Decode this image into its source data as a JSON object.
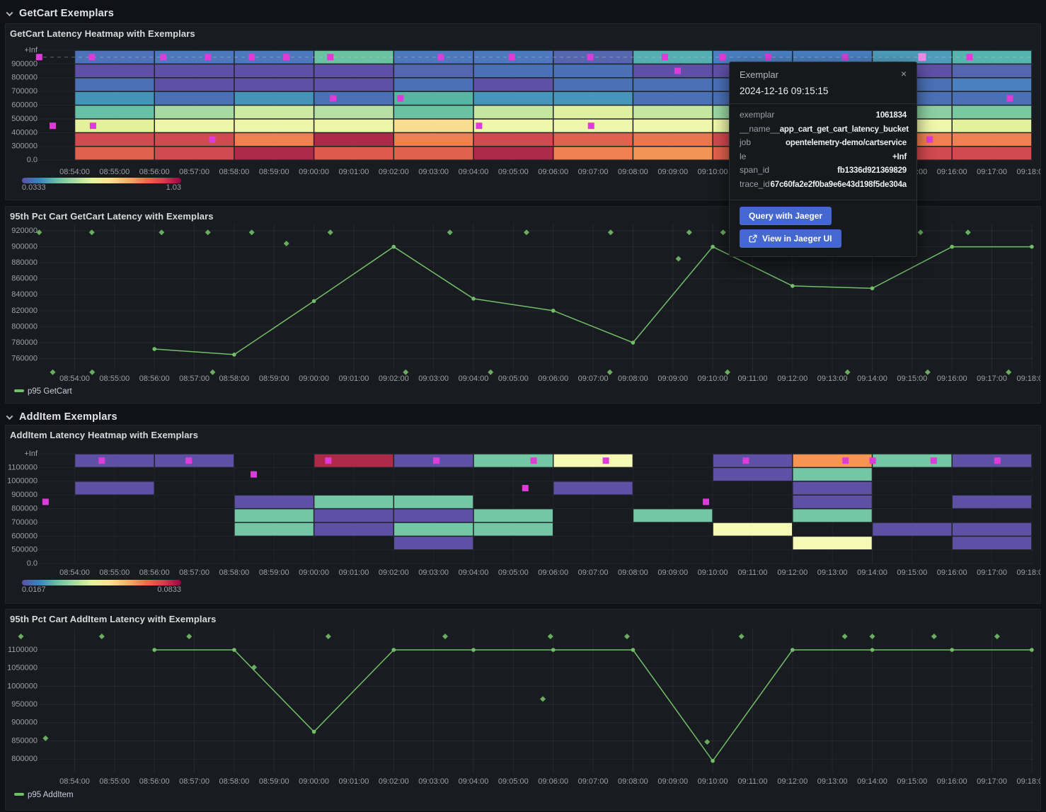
{
  "sections": [
    {
      "title": "GetCart Exemplars"
    },
    {
      "title": "AddItem Exemplars"
    }
  ],
  "exemplar_color": "#dd3cd8",
  "exemplar_highlight_color": "#f58ae6",
  "accent_button_color": "#4468cf",
  "time_axis": [
    "08:54:00",
    "08:55:00",
    "08:56:00",
    "08:57:00",
    "08:58:00",
    "08:59:00",
    "09:00:00",
    "09:01:00",
    "09:02:00",
    "09:03:00",
    "09:04:00",
    "09:05:00",
    "09:06:00",
    "09:07:00",
    "09:08:00",
    "09:09:00",
    "09:10:00",
    "09:11:00",
    "09:12:00",
    "09:13:00",
    "09:14:00",
    "09:15:00",
    "09:16:00",
    "09:17:00",
    "09:18:00"
  ],
  "tooltip": {
    "title": "Exemplar",
    "close_icon": "×",
    "timestamp": "2024-12-16 09:15:15",
    "fields": [
      {
        "label": "exemplar",
        "value": "1061834"
      },
      {
        "label": "__name__",
        "value": "app_cart_get_cart_latency_bucket"
      },
      {
        "label": "job",
        "value": "opentelemetry-demo/cartservice"
      },
      {
        "label": "le",
        "value": "+Inf"
      },
      {
        "label": "span_id",
        "value": "fb1336d921369829"
      },
      {
        "label": "trace_id",
        "value": "67c60fa2e2f0ba9e6e43d198f5de304a"
      }
    ],
    "buttons": [
      {
        "label": "Query with Jaeger",
        "icon": null
      },
      {
        "label": "View in Jaeger UI",
        "icon": "external-link-icon"
      }
    ]
  },
  "chart_data": [
    {
      "type": "heatmap",
      "title": "GetCart Latency Heatmap with Exemplars",
      "y_bucket_labels": [
        "0.0",
        "300000",
        "400000",
        "500000",
        "600000",
        "700000",
        "800000",
        "900000",
        "+Inf"
      ],
      "col_start_min": 1,
      "col_width_min": 2,
      "dashed_guideline_row": 0,
      "cells": [
        [
          "#4d72b8",
          "#5e51a5",
          "#4a70b6",
          "#4494b8",
          "#68c0a4",
          "#e3f19c",
          "#d04a50",
          "#e0614d"
        ],
        [
          "#4d79bc",
          "#5e51a5",
          "#5e51a5",
          "#4a70b6",
          "#a6d9a4",
          "#ecf6a6",
          "#d04a50",
          "#d04a50"
        ],
        [
          "#4d79bc",
          "#5e51a5",
          "#5e51a5",
          "#4494b8",
          "#cdeaa2",
          "#ecf6a6",
          "#ef8150",
          "#ae2a48"
        ],
        [
          "#6ac2a2",
          "#5e51a5",
          "#5e51a5",
          "#4a70b6",
          "#b5dfa4",
          "#ecf6a6",
          "#ae2a48",
          "#dd5b4c"
        ],
        [
          "#4d79bc",
          "#5565ae",
          "#4a70b6",
          "#57b5a2",
          "#6ac2a2",
          "#f7dd8e",
          "#ef8150",
          "#e0614d"
        ],
        [
          "#4d79bc",
          "#4a70b6",
          "#5e51a5",
          "#4596ba",
          "#c4e6a0",
          "#eef7ab",
          "#d04a50",
          "#ae2a48"
        ],
        [
          "#5565ae",
          "#4a70b6",
          "#4a70b6",
          "#4596ba",
          "#dff0a0",
          "#eef7ab",
          "#e0614d",
          "#ef8150"
        ],
        [
          "#55aeb2",
          "#5e51a5",
          "#4a70b6",
          "#4a70b6",
          "#c4e6a0",
          "#eef7ab",
          "#e8764f",
          "#f29455"
        ],
        [
          "#4a7fc0",
          "#5e51a5",
          "#4a70b6",
          "#4a70b6",
          "#9cd7a4",
          "#eef7ab",
          "#d04a50",
          "#e0614d"
        ],
        [
          "#4a7fc0",
          "#5e51a5",
          "#4a70b6",
          "#4596ba",
          "#b5dfa4",
          "#eef7ab",
          "#e0614d",
          "#d04a50"
        ],
        [
          "#4e9cba",
          "#5e51a5",
          "#4a70b6",
          "#4a70b6",
          "#8ccfa2",
          "#eef7ab",
          "#ef8150",
          "#d04a50"
        ],
        [
          "#55b5ae",
          "#5565ae",
          "#4a7fc0",
          "#4a70b6",
          "#79c9a0",
          "#e3f19c",
          "#ef8150",
          "#d04a50"
        ]
      ],
      "exemplars": [
        {
          "m": 0.11,
          "row": 0
        },
        {
          "m": 1.43,
          "row": 0
        },
        {
          "m": 3.22,
          "row": 0
        },
        {
          "m": 4.34,
          "row": 0
        },
        {
          "m": 5.44,
          "row": 0
        },
        {
          "m": 6.31,
          "row": 0
        },
        {
          "m": 7.41,
          "row": 0
        },
        {
          "m": 10.18,
          "row": 0
        },
        {
          "m": 11.96,
          "row": 0
        },
        {
          "m": 13.93,
          "row": 0
        },
        {
          "m": 15.8,
          "row": 0
        },
        {
          "m": 17.25,
          "row": 0
        },
        {
          "m": 18.39,
          "row": 0
        },
        {
          "m": 20.32,
          "row": 0
        },
        {
          "m": 22.25,
          "row": 0,
          "highlight": true
        },
        {
          "m": 23.44,
          "row": 0
        },
        {
          "m": 16.12,
          "row": 1
        },
        {
          "m": 7.48,
          "row": 3
        },
        {
          "m": 9.17,
          "row": 3
        },
        {
          "m": 24.45,
          "row": 3
        },
        {
          "m": 0.45,
          "row": 5
        },
        {
          "m": 1.46,
          "row": 5
        },
        {
          "m": 11.14,
          "row": 5
        },
        {
          "m": 13.95,
          "row": 5
        },
        {
          "m": 4.45,
          "row": 6
        },
        {
          "m": 22.44,
          "row": 6
        }
      ],
      "scale": {
        "min_label": "0.0333",
        "max_label": "1.03",
        "gradient": [
          "#5e4fa2",
          "#3288bd",
          "#66c2a5",
          "#abdda4",
          "#e6f598",
          "#fee08b",
          "#fdae61",
          "#f46d43",
          "#d53e4f",
          "#9e0142"
        ]
      }
    },
    {
      "type": "line",
      "title": "95th Pct Cart GetCart Latency with Exemplars",
      "legend": "p95 GetCart",
      "y_ticks": [
        920000,
        900000,
        880000,
        860000,
        840000,
        820000,
        800000,
        780000,
        760000
      ],
      "y_max": 920000,
      "y_step": 20000,
      "series": [
        {
          "name": "p95 GetCart",
          "color": "#73bf69",
          "x_times": [
            "08:56:00",
            "08:58:00",
            "09:00:00",
            "09:02:00",
            "09:04:00",
            "09:06:00",
            "09:08:00",
            "09:10:00",
            "09:12:00",
            "09:14:00",
            "09:16:00",
            "09:18:00"
          ],
          "x_min": [
            3,
            5,
            7,
            9,
            11,
            13,
            15,
            17,
            19,
            21,
            23,
            25
          ],
          "values": [
            772000,
            765000,
            832000,
            900000,
            835000,
            820000,
            780000,
            900000,
            851000,
            848000,
            900000,
            900000
          ]
        }
      ],
      "exemplars": [
        {
          "m": 0.11,
          "v": 918000
        },
        {
          "m": 1.43,
          "v": 918000
        },
        {
          "m": 3.18,
          "v": 918000
        },
        {
          "m": 4.34,
          "v": 918000
        },
        {
          "m": 5.44,
          "v": 918000
        },
        {
          "m": 7.41,
          "v": 918000
        },
        {
          "m": 10.41,
          "v": 918000
        },
        {
          "m": 12.33,
          "v": 918000
        },
        {
          "m": 14.44,
          "v": 918000
        },
        {
          "m": 16.41,
          "v": 918000
        },
        {
          "m": 17.26,
          "v": 918000
        },
        {
          "m": 22.21,
          "v": 918000
        },
        {
          "m": 23.4,
          "v": 918000
        },
        {
          "m": 6.31,
          "v": 904000
        },
        {
          "m": 16.14,
          "v": 885000
        },
        {
          "m": 0.45,
          "v": 743000
        },
        {
          "m": 1.44,
          "v": 743000
        },
        {
          "m": 4.46,
          "v": 743000
        },
        {
          "m": 9.3,
          "v": 743000
        },
        {
          "m": 11.43,
          "v": 743000
        },
        {
          "m": 14.42,
          "v": 743000
        },
        {
          "m": 17.37,
          "v": 743000
        },
        {
          "m": 20.38,
          "v": 743000
        },
        {
          "m": 22.39,
          "v": 743000
        },
        {
          "m": 24.42,
          "v": 743000
        }
      ]
    },
    {
      "type": "heatmap",
      "title": "AddItem Latency Heatmap with Exemplars",
      "y_bucket_labels": [
        "0.0",
        "500000",
        "600000",
        "700000",
        "800000",
        "900000",
        "1000000",
        "1100000",
        "+Inf"
      ],
      "col_start_min": 1,
      "col_width_min": 2,
      "dashed_guideline_row": null,
      "cells": [
        [
          "#5e51a5",
          null,
          "#5e51a5",
          null,
          null,
          null,
          null,
          null
        ],
        [
          "#5e51a5",
          null,
          null,
          null,
          null,
          null,
          null,
          null
        ],
        [
          null,
          null,
          null,
          "#5e51a5",
          "#74c7a4",
          "#74c7a4",
          null,
          null
        ],
        [
          "#ae2a48",
          null,
          null,
          "#74c7a4",
          "#5e51a5",
          "#5e51a5",
          null,
          null
        ],
        [
          "#5e51a5",
          null,
          null,
          "#74c7a4",
          "#5e51a5",
          "#74c7a4",
          "#5e51a5",
          null
        ],
        [
          "#74c7a4",
          null,
          null,
          null,
          "#74c7a4",
          "#74c7a4",
          null,
          null
        ],
        [
          "#f5f9b4",
          null,
          "#5e51a5",
          null,
          null,
          null,
          null,
          null
        ],
        [
          null,
          null,
          null,
          null,
          "#74c7a4",
          null,
          null,
          null
        ],
        [
          "#5e51a5",
          "#5e51a5",
          null,
          null,
          null,
          "#f5f9b4",
          null,
          null
        ],
        [
          "#f79454",
          "#74c7a4",
          "#5e51a5",
          "#5e51a5",
          "#74c7a4",
          null,
          "#f5f9b4",
          null
        ],
        [
          "#74c7a4",
          null,
          null,
          null,
          null,
          "#5e51a5",
          null,
          null
        ],
        [
          "#5e51a5",
          null,
          null,
          "#5e51a5",
          null,
          "#5e51a5",
          "#5e51a5",
          null
        ]
      ],
      "exemplars": [
        {
          "m": 1.68,
          "row": 0
        },
        {
          "m": 3.86,
          "row": 0
        },
        {
          "m": 7.36,
          "row": 0
        },
        {
          "m": 10.07,
          "row": 0
        },
        {
          "m": 12.51,
          "row": 0
        },
        {
          "m": 14.32,
          "row": 0
        },
        {
          "m": 17.83,
          "row": 0
        },
        {
          "m": 20.33,
          "row": 0
        },
        {
          "m": 21.01,
          "row": 0
        },
        {
          "m": 22.54,
          "row": 0
        },
        {
          "m": 24.14,
          "row": 0
        },
        {
          "m": 5.49,
          "row": 1
        },
        {
          "m": 12.3,
          "row": 2
        },
        {
          "m": 0.27,
          "row": 3
        },
        {
          "m": 16.83,
          "row": 3
        }
      ],
      "scale": {
        "min_label": "0.0167",
        "max_label": "0.0833",
        "gradient": [
          "#5e4fa2",
          "#3288bd",
          "#66c2a5",
          "#abdda4",
          "#e6f598",
          "#fee08b",
          "#fdae61",
          "#f46d43",
          "#d53e4f",
          "#9e0142"
        ]
      }
    },
    {
      "type": "line",
      "title": "95th Pct Cart AddItem Latency with Exemplars",
      "legend": "p95 AddItem",
      "y_ticks": [
        1100000,
        1050000,
        1000000,
        950000,
        900000,
        850000,
        800000
      ],
      "y_max": 1100000,
      "y_step": 50000,
      "series": [
        {
          "name": "p95 AddItem",
          "color": "#73bf69",
          "x_times": [
            "08:56:00",
            "08:58:00",
            "09:00:00",
            "09:02:00",
            "09:04:00",
            "09:06:00",
            "09:08:00",
            "09:10:00",
            "09:12:00",
            "09:14:00",
            "09:16:00",
            "09:18:00"
          ],
          "x_min": [
            3,
            5,
            7,
            9,
            11,
            13,
            15,
            17,
            19,
            21,
            23,
            25
          ],
          "values": [
            1100000,
            1100000,
            875000,
            1100000,
            1100000,
            1100000,
            1100000,
            795000,
            1100000,
            1100000,
            1100000,
            1100000
          ]
        }
      ],
      "exemplars": [
        {
          "m": -0.35,
          "v": 1137000
        },
        {
          "m": 1.68,
          "v": 1137000
        },
        {
          "m": 3.87,
          "v": 1137000
        },
        {
          "m": 7.36,
          "v": 1137000
        },
        {
          "m": 10.29,
          "v": 1137000
        },
        {
          "m": 12.93,
          "v": 1137000
        },
        {
          "m": 14.85,
          "v": 1137000
        },
        {
          "m": 17.72,
          "v": 1137000
        },
        {
          "m": 20.31,
          "v": 1137000
        },
        {
          "m": 21.0,
          "v": 1137000
        },
        {
          "m": 22.55,
          "v": 1137000
        },
        {
          "m": 24.13,
          "v": 1137000
        },
        {
          "m": 0.27,
          "v": 857000
        },
        {
          "m": 5.5,
          "v": 1052000
        },
        {
          "m": 12.74,
          "v": 965000
        },
        {
          "m": 16.86,
          "v": 847000
        }
      ]
    }
  ]
}
